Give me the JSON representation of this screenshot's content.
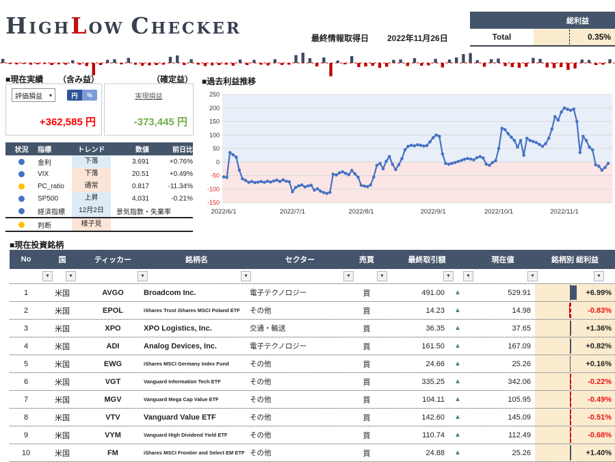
{
  "app": {
    "title": {
      "p1": "H",
      "p2": "IGH",
      "p3": "L",
      "p4": "OW",
      "p5": "C",
      "p6": "HECKER"
    }
  },
  "header": {
    "last_update_label": "最終情報取得日",
    "last_update_value": "2022年11月26日",
    "total_box": {
      "header": "総利益",
      "row_label": "Total",
      "value": "0.35%"
    }
  },
  "current_performance": {
    "section_label": "■現在実績",
    "unrealized_label": "（含み益）",
    "realized_label": "（確定益）",
    "dropdown_value": "評価損益",
    "toggle_yen": "円",
    "toggle_pct": "%",
    "unrealized_value": "+362,585 円",
    "realized_link": "実現損益",
    "realized_value": "-373,445 円"
  },
  "status_table": {
    "headers": [
      "状況",
      "指標",
      "トレンド",
      "数値",
      "前日比"
    ],
    "rows": [
      {
        "dot": "blue",
        "label": "金利",
        "trend": "下落",
        "trend_bg": "blue",
        "value": "3.691",
        "change": "+0.76%",
        "note": ""
      },
      {
        "dot": "blue",
        "label": "VIX",
        "trend": "下落",
        "trend_bg": "cream",
        "value": "20.51",
        "change": "+0.49%",
        "note": ""
      },
      {
        "dot": "yellow",
        "label": "PC_ratio",
        "trend": "通常",
        "trend_bg": "cream",
        "value": "0.817",
        "change": "-11.34%",
        "note": ""
      },
      {
        "dot": "blue",
        "label": "SP500",
        "trend": "上昇",
        "trend_bg": "blue",
        "value": "4,031",
        "change": "-0.21%",
        "note": ""
      },
      {
        "dot": "blue",
        "label": "経済指標",
        "trend": "12月2日",
        "trend_bg": "blue",
        "value": "",
        "change": "",
        "note": "景気指数・失業率"
      },
      {
        "dot": "yellow",
        "label": "判断",
        "trend": "様子見",
        "trend_bg": "cream",
        "value": "",
        "change": "",
        "note": ""
      }
    ]
  },
  "chart_data": [
    {
      "type": "bar",
      "subtype": "winloss-sparkline",
      "title": "",
      "values": [
        1.2,
        -0.3,
        -0.4,
        -0.3,
        -0.5,
        -0.4,
        -0.3,
        -0.6,
        -0.4,
        -0.5,
        0.8,
        -0.5,
        -0.9,
        -3.6,
        -0.6,
        0.9,
        1.1,
        -0.4,
        1.5,
        -0.5,
        -0.8,
        -0.7,
        -0.6,
        -0.5,
        1.8,
        2.2,
        -0.6,
        1.1,
        -0.5,
        -0.9,
        -0.7,
        -0.6,
        -0.5,
        -0.8,
        1.0,
        -0.6,
        0.9,
        -0.5,
        -0.7,
        1.1,
        -0.6,
        -0.5,
        2.3,
        3.0,
        1.4,
        -1.0,
        1.6,
        -3.9,
        0.7,
        -0.4,
        2.0,
        -1.2,
        -1.0,
        -0.8,
        -1.4,
        -1.1,
        0.9,
        1.0,
        -0.9,
        1.4,
        -0.8,
        -0.7,
        1.2,
        -1.3,
        1.0,
        1.6,
        2.6,
        2.9,
        0.8,
        -1.1,
        1.1,
        1.3,
        -0.9,
        -1.2,
        -1.4,
        -1.1,
        1.5,
        1.2,
        -1.3,
        -1.5,
        -1.2,
        -2.0,
        -1.6,
        1.0,
        0.9,
        -0.6,
        -0.5,
        1.1
      ],
      "positive_color": "#3E4C63",
      "negative_color": "#C00000",
      "baseline": "dashed-red"
    },
    {
      "type": "line",
      "title": "■過去利益推移",
      "x_labels": [
        "2022/6/1",
        "2022/7/1",
        "2022/8/1",
        "2022/9/1",
        "2022/10/1",
        "2022/11/1"
      ],
      "month_start_indices": [
        0,
        22,
        44,
        67,
        88,
        109
      ],
      "y_ticks": [
        250,
        200,
        150,
        100,
        50,
        0,
        -50,
        -100,
        -150
      ],
      "ylim": [
        -150,
        250
      ],
      "values": [
        -55,
        -57,
        35,
        27,
        18,
        -30,
        -62,
        -68,
        -75,
        -72,
        -76,
        -74,
        -72,
        -75,
        -71,
        -74,
        -70,
        -67,
        -72,
        -66,
        -71,
        -73,
        -110,
        -94,
        -88,
        -85,
        -92,
        -88,
        -86,
        -104,
        -99,
        -108,
        -113,
        -116,
        -112,
        -45,
        -48,
        -40,
        -36,
        -42,
        -47,
        -31,
        -44,
        -56,
        -86,
        -89,
        -91,
        -85,
        -55,
        -12,
        -5,
        -25,
        3,
        20,
        -8,
        -28,
        -10,
        12,
        45,
        58,
        62,
        60,
        64,
        62,
        59,
        61,
        75,
        90,
        100,
        95,
        30,
        -5,
        -8,
        -5,
        -2,
        2,
        6,
        10,
        13,
        11,
        8,
        16,
        20,
        15,
        -8,
        -12,
        -2,
        5,
        50,
        125,
        120,
        105,
        92,
        80,
        55,
        80,
        25,
        88,
        80,
        76,
        72,
        65,
        58,
        68,
        88,
        122,
        168,
        155,
        185,
        200,
        195,
        191,
        196,
        150,
        35,
        95,
        80,
        55,
        45,
        -10,
        -15,
        -30,
        -20,
        -5
      ],
      "line_color": "#4472C4",
      "bg_above_zero": "#E9EFF8",
      "bg_below_zero": "#FBE5E5",
      "grid": true,
      "legend": "none"
    }
  ],
  "holdings_table": {
    "section_label": "■現在投資銘柄",
    "headers": {
      "no": "No",
      "country": "国",
      "ticker": "ティッカー",
      "name": "銘柄名",
      "sector": "セクター",
      "side": "売買",
      "last_price": "最終取引額",
      "current": "現在値",
      "profit": "銘柄別 総利益"
    },
    "rows": [
      {
        "no": "1",
        "country": "米国",
        "ticker": "AVGO",
        "name": "Broadcom Inc.",
        "sector": "電子テクノロジー",
        "side": "買",
        "last_price": "491.00",
        "trend_icon": "up",
        "current": "529.91",
        "profit": "+6.99%",
        "profit_value": 6.99
      },
      {
        "no": "2",
        "country": "米国",
        "ticker": "EPOL",
        "name": "iShares Trust iShares MSCI Poland ETF",
        "sector": "その他",
        "side": "買",
        "last_price": "14.23",
        "trend_icon": "up",
        "current": "14.98",
        "profit": "-0.83%",
        "profit_value": -0.83
      },
      {
        "no": "3",
        "country": "米国",
        "ticker": "XPO",
        "name": "XPO Logistics, Inc.",
        "sector": "交通・輸送",
        "side": "買",
        "last_price": "36.35",
        "trend_icon": "up",
        "current": "37.65",
        "profit": "+1.36%",
        "profit_value": 1.36
      },
      {
        "no": "4",
        "country": "米国",
        "ticker": "ADI",
        "name": "Analog Devices, Inc.",
        "sector": "電子テクノロジー",
        "side": "買",
        "last_price": "161.50",
        "trend_icon": "up",
        "current": "167.09",
        "profit": "+0.82%",
        "profit_value": 0.82
      },
      {
        "no": "5",
        "country": "米国",
        "ticker": "EWG",
        "name": "iShares MSCI Germany Index Fund",
        "sector": "その他",
        "side": "買",
        "last_price": "24.66",
        "trend_icon": "up",
        "current": "25.26",
        "profit": "+0.16%",
        "profit_value": 0.16
      },
      {
        "no": "6",
        "country": "米国",
        "ticker": "VGT",
        "name": "Vanguard Information Tech ETF",
        "sector": "その他",
        "side": "買",
        "last_price": "335.25",
        "trend_icon": "up",
        "current": "342.06",
        "profit": "-0.22%",
        "profit_value": -0.22
      },
      {
        "no": "7",
        "country": "米国",
        "ticker": "MGV",
        "name": "Vanguard Mega Cap Value ETF",
        "sector": "その他",
        "side": "買",
        "last_price": "104.11",
        "trend_icon": "up",
        "current": "105.95",
        "profit": "-0.49%",
        "profit_value": -0.49
      },
      {
        "no": "8",
        "country": "米国",
        "ticker": "VTV",
        "name": "Vanguard Value ETF",
        "sector": "その他",
        "side": "買",
        "last_price": "142.60",
        "trend_icon": "up",
        "current": "145.09",
        "profit": "-0.51%",
        "profit_value": -0.51
      },
      {
        "no": "9",
        "country": "米国",
        "ticker": "VYM",
        "name": "Vanguard High Dividend Yield ETF",
        "sector": "その他",
        "side": "買",
        "last_price": "110.74",
        "trend_icon": "up",
        "current": "112.49",
        "profit": "-0.68%",
        "profit_value": -0.68
      },
      {
        "no": "10",
        "country": "米国",
        "ticker": "FM",
        "name": "iShares MSCI Frontier and Select EM ETF",
        "sector": "その他",
        "side": "買",
        "last_price": "24.88",
        "trend_icon": "up",
        "current": "25.26",
        "profit": "+1.40%",
        "profit_value": 1.4
      }
    ]
  },
  "colors": {
    "header_dark": "#44546A",
    "accent_red": "#C11212",
    "value_red": "#FF0000",
    "value_green": "#70AD47",
    "trend_blue_bg": "#DDEBF7",
    "trend_cream_bg": "#FCE4D6",
    "databar_cream": "#FBECCF",
    "dot_blue": "#4472C4",
    "dot_yellow": "#FFC000",
    "line_blue": "#4472C4",
    "up_triangle_green": "#4D8A6A"
  }
}
